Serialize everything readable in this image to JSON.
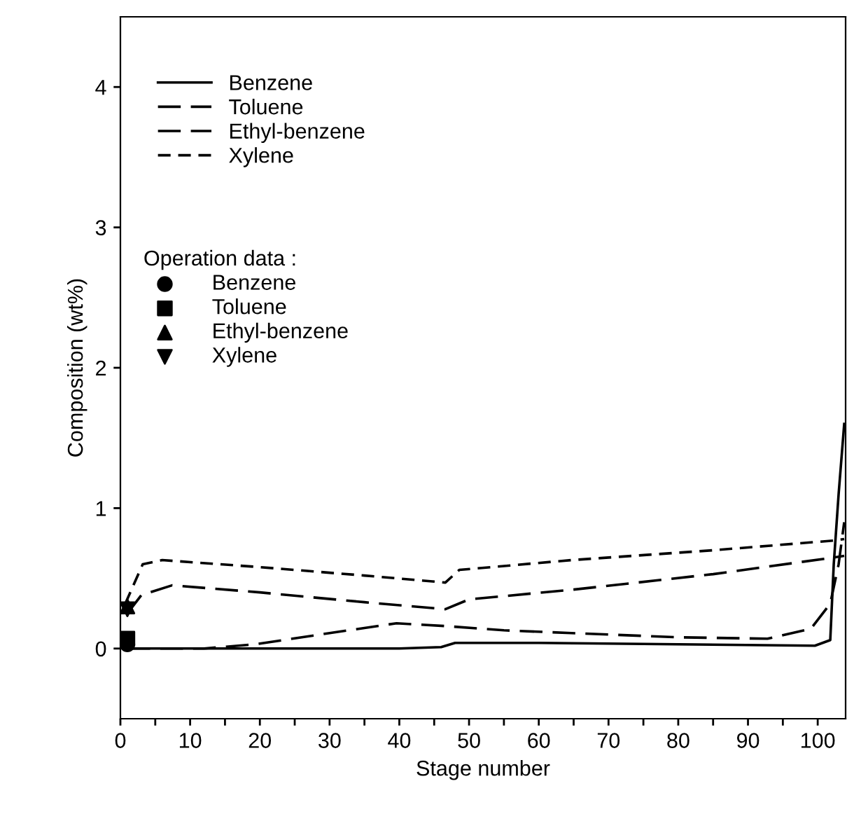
{
  "chart_data": {
    "type": "line",
    "xlabel": "Stage number",
    "ylabel": "Composition (wt%)",
    "legend_title": "Operation data :",
    "legend": "top left",
    "grid": false,
    "xlim": [
      0,
      104
    ],
    "ylim": [
      -0.5,
      4.5
    ],
    "xticks": [
      0,
      {
        "value": 5,
        "label": null
      },
      10,
      {
        "value": 15,
        "label": null
      },
      20,
      {
        "value": 25,
        "label": null
      },
      30,
      {
        "value": 35,
        "label": null
      },
      40,
      {
        "value": 45,
        "label": null
      },
      50,
      {
        "value": 55,
        "label": null
      },
      60,
      {
        "value": 65,
        "label": null
      },
      70,
      {
        "value": 75,
        "label": null
      },
      80,
      {
        "value": 85,
        "label": null
      },
      90,
      {
        "value": 95,
        "label": null
      },
      100
    ],
    "yticks": [
      0,
      1,
      2,
      3,
      4
    ],
    "series": [
      {
        "name": "Benzene",
        "color": "#000000",
        "line_style": "solid",
        "marker": "none",
        "x": [
          1,
          20,
          40,
          46,
          48,
          60,
          80,
          99.6,
          101.8,
          102.3,
          103,
          103.8
        ],
        "values": [
          0,
          0,
          0,
          0.01,
          0.04,
          0.04,
          0.03,
          0.02,
          0.06,
          0.6,
          1.1,
          1.6
        ]
      },
      {
        "name": "Toluene",
        "color": "#000000",
        "line_style": "dashed",
        "marker": "none",
        "x": [
          1,
          12,
          19.3,
          30,
          39.6,
          46.6,
          55,
          64.7,
          80,
          92.8,
          99,
          101.8,
          103,
          103.8
        ],
        "values": [
          0,
          0,
          0.03,
          0.11,
          0.18,
          0.16,
          0.13,
          0.11,
          0.08,
          0.07,
          0.14,
          0.32,
          0.6,
          0.9
        ]
      },
      {
        "name": "Ethyl-benzene",
        "color": "#000000",
        "line_style": "dashed",
        "marker": "none",
        "x": [
          1,
          3,
          7.4,
          20,
          35,
          46.6,
          50,
          65,
          85,
          102.5,
          103.8
        ],
        "values": [
          0.25,
          0.38,
          0.45,
          0.4,
          0.33,
          0.28,
          0.35,
          0.42,
          0.53,
          0.65,
          0.66
        ]
      },
      {
        "name": "Xylene",
        "color": "#000000",
        "line_style": "dotted",
        "marker": "none",
        "x": [
          0.7,
          3.2,
          6,
          20,
          35,
          46.6,
          48.6,
          64.7,
          85,
          102.5,
          103.8
        ],
        "values": [
          0.32,
          0.6,
          0.63,
          0.58,
          0.52,
          0.47,
          0.56,
          0.63,
          0.7,
          0.77,
          0.78
        ]
      },
      {
        "name": "Benzene",
        "type": "scatter",
        "color": "#000000",
        "marker": "circle",
        "x": [
          1
        ],
        "values": [
          0.03
        ]
      },
      {
        "name": "Toluene",
        "type": "scatter",
        "color": "#000000",
        "marker": "square",
        "x": [
          1
        ],
        "values": [
          0.07
        ]
      },
      {
        "name": "Ethyl-benzene",
        "type": "scatter",
        "color": "#000000",
        "marker": "triangle",
        "x": [
          1
        ],
        "values": [
          0.3
        ]
      },
      {
        "name": "Xylene",
        "type": "scatter",
        "color": "#000000",
        "marker": "triangle_down",
        "x": [
          1
        ],
        "values": [
          0.28
        ]
      }
    ]
  }
}
